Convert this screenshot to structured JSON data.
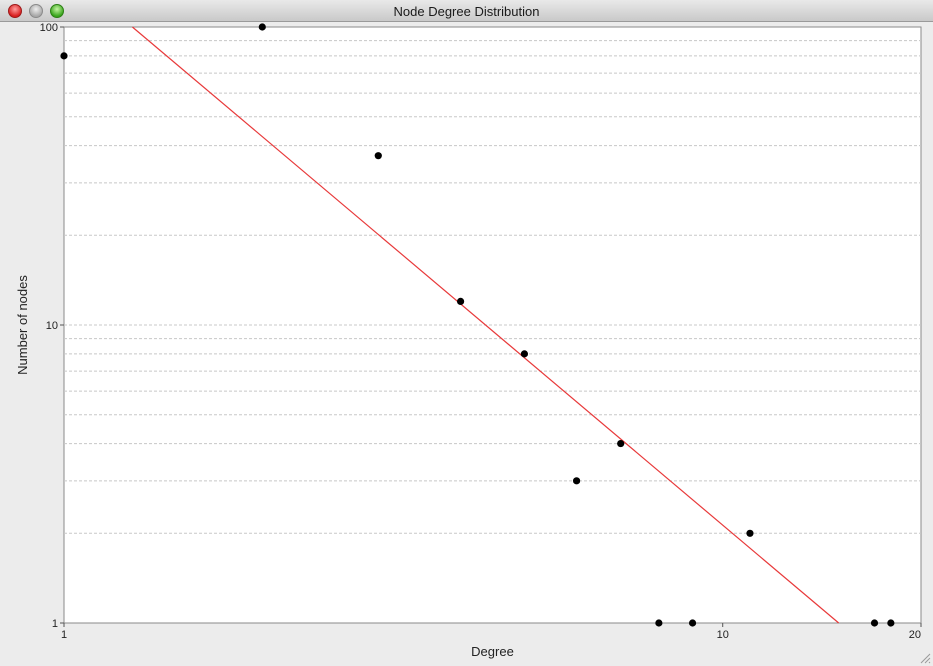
{
  "window": {
    "title": "Node Degree Distribution"
  },
  "colors": {
    "plot_background": "#ffffff",
    "gridline": "#c8c8c8",
    "point": "#000000",
    "fit_line": "#e8393a"
  },
  "chart_data": {
    "type": "scatter",
    "title": "",
    "xlabel": "Degree",
    "ylabel": "Number of nodes",
    "xscale": "log",
    "yscale": "log",
    "xlim": [
      1,
      20
    ],
    "ylim": [
      1,
      100
    ],
    "x_ticks": [
      1,
      10,
      20
    ],
    "x_tick_labels": [
      "1",
      "10",
      "20"
    ],
    "y_ticks": [
      1,
      10,
      100
    ],
    "y_tick_labels": [
      "1",
      "10",
      "100"
    ],
    "grid": "horizontal minor gridlines, dashed",
    "points": [
      {
        "x": 1,
        "y": 80
      },
      {
        "x": 2,
        "y": 100
      },
      {
        "x": 3,
        "y": 37
      },
      {
        "x": 4,
        "y": 12
      },
      {
        "x": 5,
        "y": 8
      },
      {
        "x": 6,
        "y": 3
      },
      {
        "x": 7,
        "y": 4
      },
      {
        "x": 8,
        "y": 1
      },
      {
        "x": 9,
        "y": 1
      },
      {
        "x": 11,
        "y": 2
      },
      {
        "x": 17,
        "y": 1
      },
      {
        "x": 18,
        "y": 1
      }
    ],
    "fit_line": {
      "x": [
        1.27,
        15
      ],
      "y": [
        100,
        1
      ]
    }
  }
}
